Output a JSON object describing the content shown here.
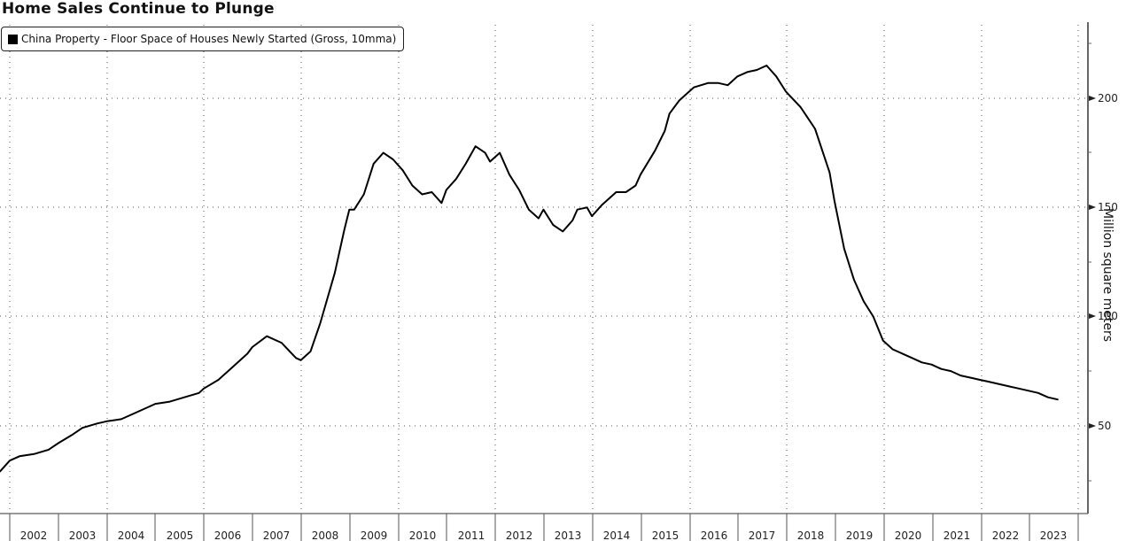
{
  "chart_data": {
    "type": "line",
    "title": "Home Sales Continue to Plunge",
    "legend": [
      "China Property - Floor Space of Houses Newly Started (Gross, 10mma)"
    ],
    "legend_position": "top-left",
    "xlabel": "",
    "ylabel": "Million square meters",
    "y_axis_side": "right",
    "ylim": [
      15,
      225
    ],
    "yticks": [
      50,
      100,
      150,
      200
    ],
    "xticks": [
      "2002",
      "2003",
      "2004",
      "2005",
      "2006",
      "2007",
      "2008",
      "2009",
      "2010",
      "2011",
      "2012",
      "2013",
      "2014",
      "2015",
      "2016",
      "2017",
      "2018",
      "2019",
      "2020",
      "2021",
      "2022",
      "2023"
    ],
    "grid": true,
    "series": [
      {
        "name": "China Property - Floor Space of Houses Newly Started (Gross, 10mma)",
        "color": "#000000",
        "x": [
          2001.8,
          2002.0,
          2002.2,
          2002.5,
          2002.8,
          2003.0,
          2003.3,
          2003.5,
          2003.8,
          2004.0,
          2004.3,
          2004.6,
          2004.9,
          2005.0,
          2005.3,
          2005.6,
          2005.9,
          2006.0,
          2006.3,
          2006.6,
          2006.9,
          2007.0,
          2007.3,
          2007.6,
          2007.9,
          2008.0,
          2008.2,
          2008.4,
          2008.7,
          2008.9,
          2009.0,
          2009.1,
          2009.3,
          2009.5,
          2009.7,
          2009.9,
          2010.1,
          2010.3,
          2010.5,
          2010.7,
          2010.9,
          2011.0,
          2011.2,
          2011.4,
          2011.6,
          2011.8,
          2011.9,
          2012.1,
          2012.3,
          2012.5,
          2012.7,
          2012.9,
          2013.0,
          2013.2,
          2013.4,
          2013.6,
          2013.7,
          2013.9,
          2014.0,
          2014.2,
          2014.5,
          2014.7,
          2014.9,
          2015.0,
          2015.3,
          2015.5,
          2015.6,
          2015.8,
          2015.9,
          2016.1,
          2016.4,
          2016.6,
          2016.8,
          2017.0,
          2017.2,
          2017.4,
          2017.6,
          2017.8,
          2018.0,
          2018.3,
          2018.6,
          2018.9,
          2019.0,
          2019.2,
          2019.4,
          2019.6,
          2019.8,
          2020.0,
          2020.2,
          2020.4,
          2020.6,
          2020.8,
          2021.0,
          2021.2,
          2021.4,
          2021.6,
          2021.8,
          2022.0,
          2022.2,
          2022.4,
          2022.6,
          2022.8,
          2023.0,
          2023.2,
          2023.4,
          2023.6
        ],
        "values": [
          29,
          34,
          36,
          37,
          39,
          42,
          46,
          49,
          51,
          52,
          53,
          56,
          59,
          60,
          61,
          63,
          65,
          67,
          71,
          77,
          83,
          86,
          91,
          88,
          81,
          80,
          84,
          97,
          120,
          140,
          149,
          149,
          156,
          170,
          175,
          172,
          167,
          160,
          156,
          157,
          152,
          158,
          163,
          170,
          178,
          175,
          171,
          175,
          165,
          158,
          149,
          145,
          149,
          142,
          139,
          144,
          149,
          150,
          146,
          151,
          157,
          157,
          160,
          165,
          176,
          185,
          193,
          199,
          201,
          205,
          207,
          207,
          206,
          210,
          212,
          213,
          215,
          210,
          203,
          196,
          186,
          166,
          153,
          131,
          117,
          107,
          100,
          89,
          85,
          83,
          81,
          79,
          78,
          76,
          75,
          73,
          72,
          71,
          70,
          69,
          68,
          67,
          66,
          65,
          63,
          62
        ]
      }
    ]
  }
}
